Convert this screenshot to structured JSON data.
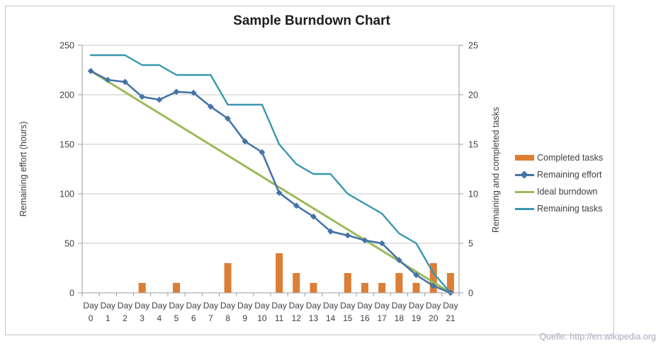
{
  "title": "Sample Burndown Chart",
  "source_note": "Quelle: http://en.wikipedia.org",
  "axes": {
    "left": {
      "title": "Remaining effort (hours)",
      "ticks": [
        0,
        50,
        100,
        150,
        200,
        250
      ],
      "range": [
        0,
        250
      ]
    },
    "right": {
      "title": "Remaining and completed tasks",
      "ticks": [
        0,
        5,
        10,
        15,
        20,
        25
      ],
      "range": [
        0,
        25
      ]
    },
    "x": {
      "word": "Day",
      "days": [
        "0",
        "1",
        "2",
        "3",
        "4",
        "5",
        "6",
        "7",
        "8",
        "9",
        "10",
        "11",
        "12",
        "13",
        "14",
        "15",
        "16",
        "17",
        "18",
        "19",
        "20",
        "21"
      ]
    }
  },
  "legend": {
    "items": [
      {
        "label": "Completed tasks",
        "swatch": "bar",
        "color": "#dc7e35"
      },
      {
        "label": "Remaining effort",
        "swatch": "line-diamond",
        "color": "#4573a7"
      },
      {
        "label": "Ideal burndown",
        "swatch": "line",
        "color": "#9aba58"
      },
      {
        "label": "Remaining tasks",
        "swatch": "line",
        "color": "#3797b0"
      }
    ]
  },
  "colors": {
    "bar_orange": "#dc7e35",
    "effort_blue": "#4573a7",
    "ideal_green": "#9aba58",
    "tasks_teal": "#3797b0",
    "gridline": "#c9c9c9",
    "axis_line": "#9e9e9e",
    "tick_text": "#3e3e48"
  },
  "chart_data": {
    "type": "bar",
    "subtype": "combo-bar-line",
    "title": "Sample Burndown Chart",
    "xlabel": "",
    "ylabel_left": "Remaining effort (hours)",
    "ylabel_right": "Remaining and completed tasks",
    "ylim_left": [
      0,
      250
    ],
    "ylim_right": [
      0,
      25
    ],
    "grid": true,
    "legend_position": "right",
    "categories": [
      "Day 0",
      "Day 1",
      "Day 2",
      "Day 3",
      "Day 4",
      "Day 5",
      "Day 6",
      "Day 7",
      "Day 8",
      "Day 9",
      "Day 10",
      "Day 11",
      "Day 12",
      "Day 13",
      "Day 14",
      "Day 15",
      "Day 16",
      "Day 17",
      "Day 18",
      "Day 19",
      "Day 20",
      "Day 21"
    ],
    "series": [
      {
        "name": "Completed tasks",
        "type": "bar",
        "axis": "right",
        "color": "#dc7e35",
        "values": [
          0,
          0,
          0,
          1,
          0,
          1,
          0,
          0,
          3,
          0,
          0,
          4,
          2,
          1,
          0,
          2,
          1,
          1,
          2,
          1,
          3,
          2
        ]
      },
      {
        "name": "Remaining effort",
        "type": "line",
        "marker": "diamond",
        "axis": "left",
        "color": "#4573a7",
        "values": [
          224,
          215,
          213,
          198,
          195,
          203,
          202,
          188,
          176,
          153,
          142,
          101,
          88,
          77,
          62,
          58,
          53,
          50,
          33,
          18,
          7,
          0
        ]
      },
      {
        "name": "Ideal burndown",
        "type": "line",
        "marker": "none",
        "axis": "left",
        "color": "#9aba58",
        "values": [
          224,
          213.3,
          202.7,
          192,
          181.3,
          170.7,
          160,
          149.3,
          138.7,
          128,
          117.3,
          106.7,
          96,
          85.3,
          74.7,
          64,
          53.3,
          42.7,
          32,
          21.3,
          10.7,
          0
        ]
      },
      {
        "name": "Remaining tasks",
        "type": "line",
        "marker": "none",
        "axis": "right",
        "color": "#3797b0",
        "values": [
          24,
          24,
          24,
          23,
          23,
          22,
          22,
          22,
          19,
          19,
          19,
          15,
          13,
          12,
          12,
          10,
          9,
          8,
          6,
          5,
          2,
          0
        ]
      }
    ]
  }
}
